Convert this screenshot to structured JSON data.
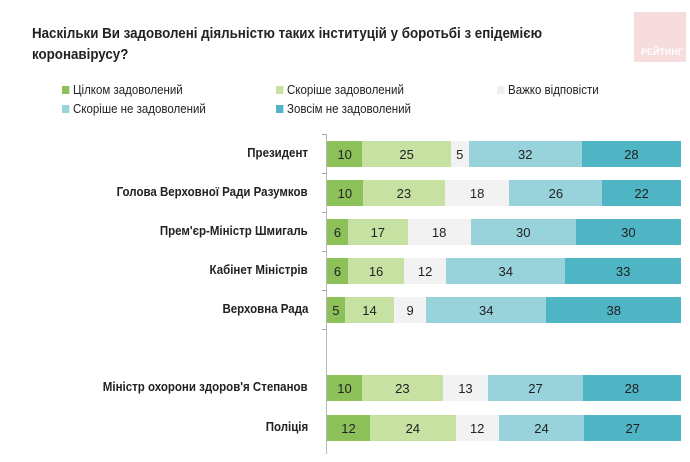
{
  "chart_data": {
    "type": "bar",
    "orientation": "horizontal",
    "stacked": true,
    "title": "Наскільки Ви задоволені діяльністю таких інституцій у боротьбі з епідемією коронавірусу?",
    "categories": [
      "Президент",
      "Голова Верховної Ради Разумков",
      "Прем'єр-Міністр Шмигаль",
      "Кабінет Міністрів",
      "Верховна Рада",
      "Міністр охорони здоров'я Степанов",
      "Поліція"
    ],
    "series": [
      {
        "name": "Цілком задоволений",
        "color": "#8cc15a",
        "values": [
          10,
          10,
          6,
          6,
          5,
          10,
          12
        ]
      },
      {
        "name": "Скоріше задоволений",
        "color": "#c6e1a1",
        "values": [
          25,
          23,
          17,
          16,
          14,
          23,
          24
        ]
      },
      {
        "name": "Важко відповісти",
        "color": "#f2f2f2",
        "values": [
          5,
          18,
          18,
          12,
          9,
          13,
          12
        ]
      },
      {
        "name": "Скоріше не задоволений",
        "color": "#98d3dc",
        "values": [
          32,
          26,
          30,
          34,
          34,
          27,
          24
        ]
      },
      {
        "name": "Зовсім не задоволений",
        "color": "#4fb4c4",
        "values": [
          28,
          22,
          30,
          33,
          38,
          28,
          27
        ]
      }
    ],
    "legend_position": "top",
    "data_labels": true,
    "grid": false
  },
  "logo": {
    "text": "РЕЙТИНГ"
  }
}
